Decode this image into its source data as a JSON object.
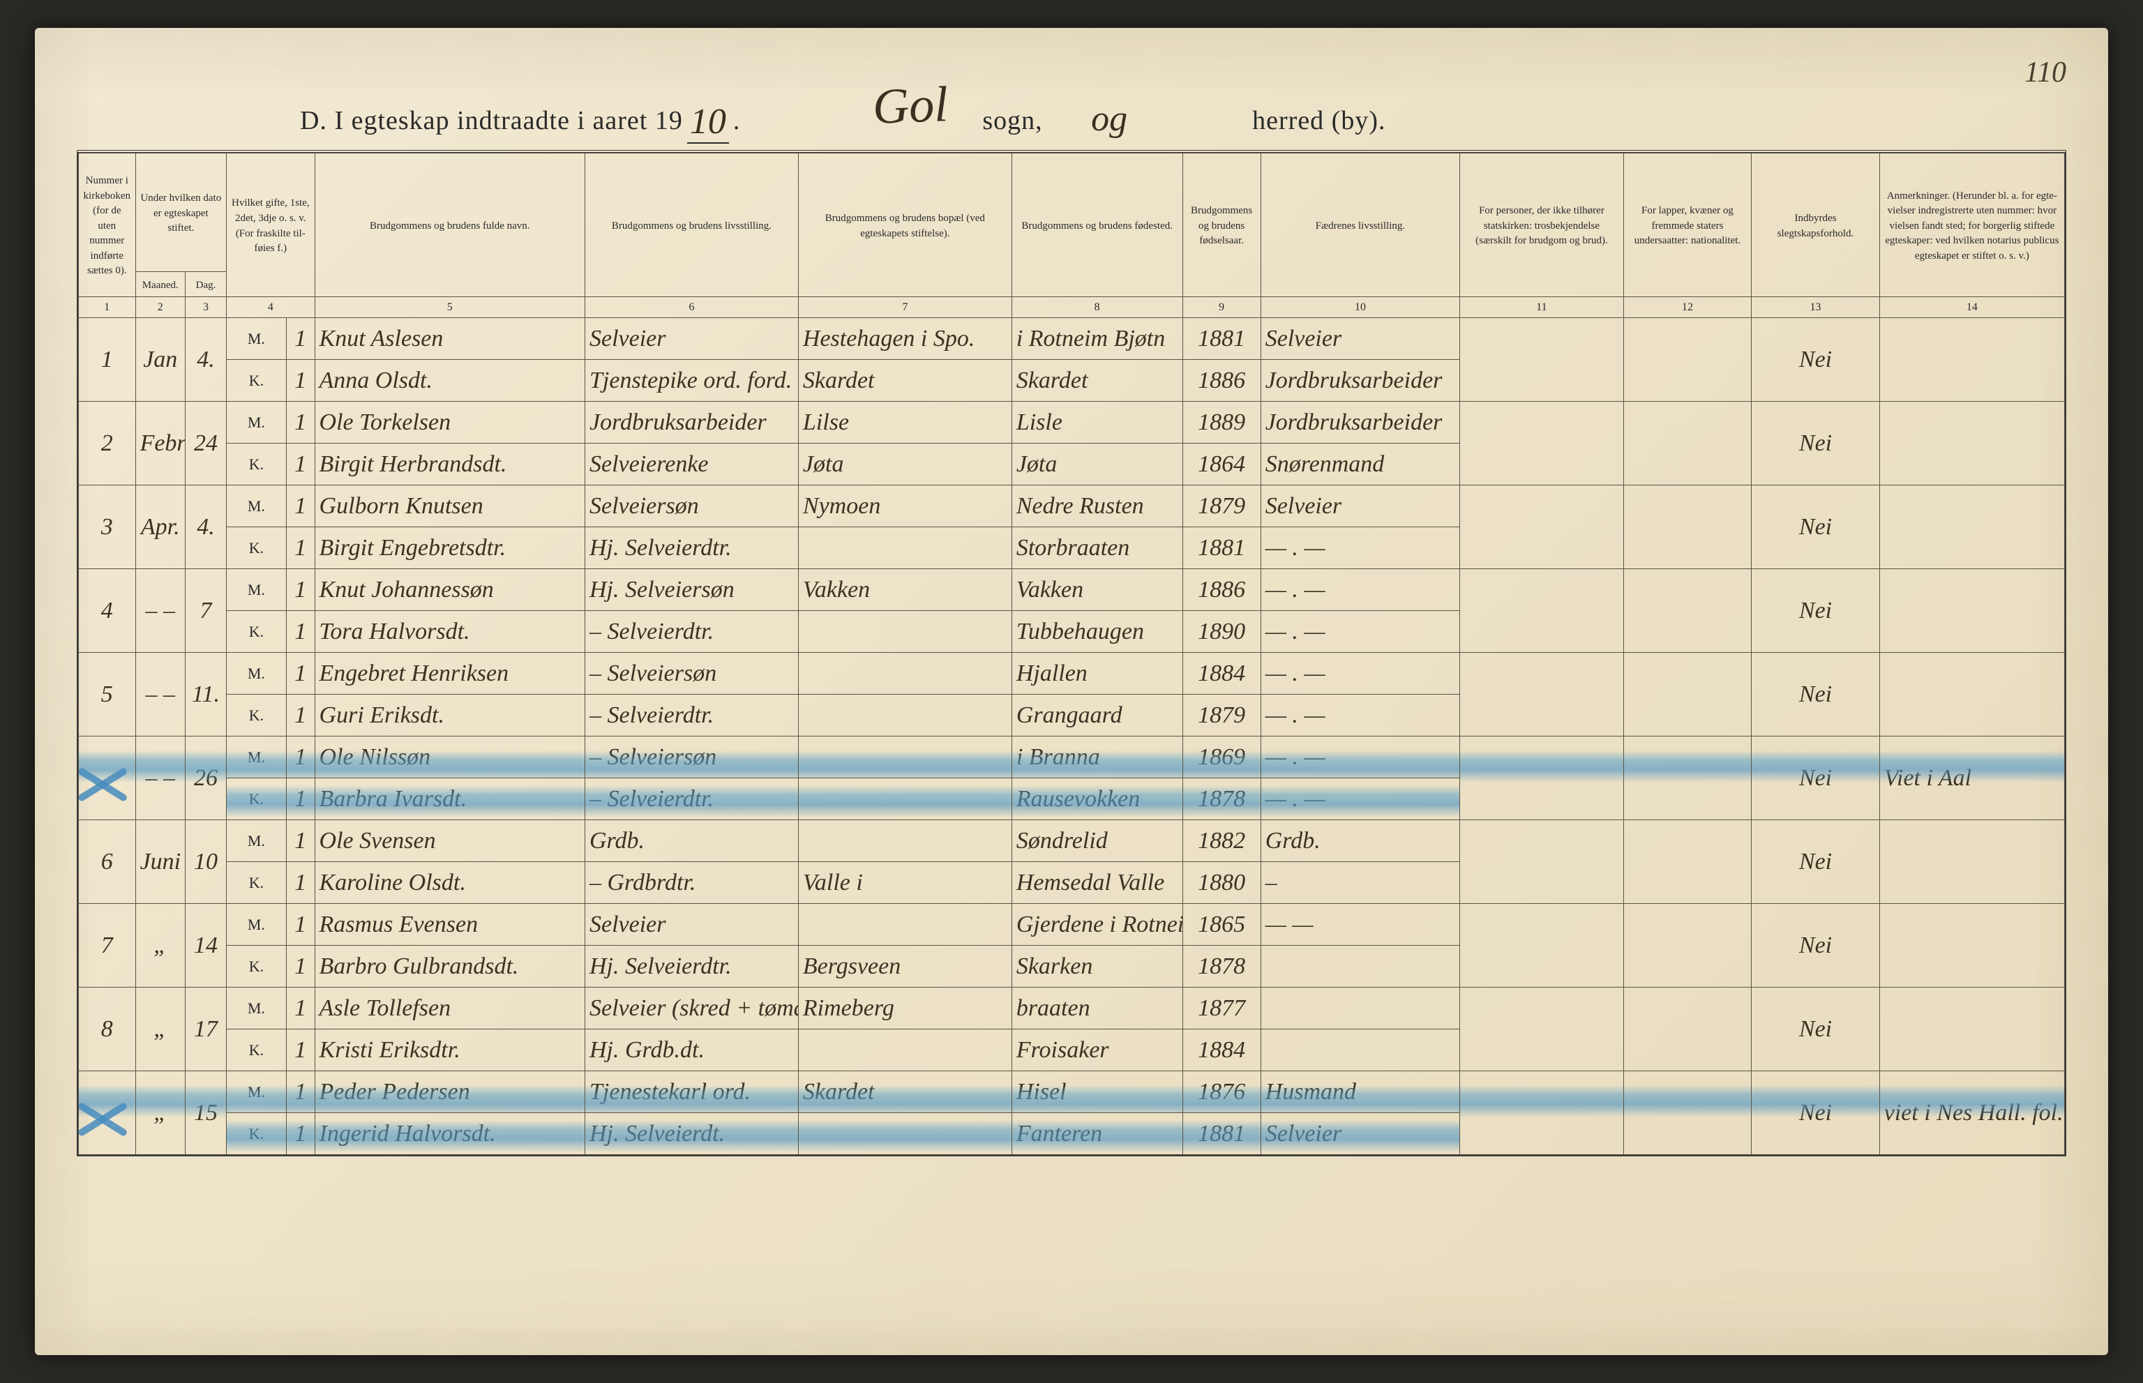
{
  "page_number_corner": "110",
  "title": {
    "prefix": "D.   I egteskap indtraadte i aaret 19",
    "year_hand": "10",
    "suffix1": ".",
    "sogn_hand": "Gol",
    "sogn_label": "sogn,",
    "herred_hand": "og",
    "herred_label": "herred (by)."
  },
  "headers": {
    "c1": "Nummer i kirke­boken (for de uten nummer indførte sættes 0).",
    "c23": "Under hvilken dato er egte­skapet stiftet.",
    "c2": "Maaned.",
    "c3": "Dag.",
    "c4": "Hvilket gifte, 1ste, 2det, 3dje o. s. v. (For fra­skilte til­føies f.)",
    "c5": "Brudgommens og brudens fulde navn.",
    "c6": "Brudgommens og brudens livsstilling.",
    "c7": "Brudgommens og brudens bopæl (ved egteskapets stiftelse).",
    "c8": "Brudgommens og brudens fødested.",
    "c9": "Brudgom­mens og brudens fødsels­aar.",
    "c10": "Fædrenes livsstilling.",
    "c11": "For personer, der ikke tilhører statskirken: trosbekjendelse (særskilt for brudgom og brud).",
    "c12": "For lapper, kvæner og fremmede staters undersaatter: nationalitet.",
    "c13": "Indbyrdes slegtskapsforhold.",
    "c14": "Anmerkninger. (Herunder bl. a. for egte­vielser indregistrerte uten nummer: hvor vielsen fandt sted; for borgerlig stiftede egteskaper: ved hvilken notarius publicus egteskapet er stiftet o. s. v.)"
  },
  "colnums": [
    "1",
    "2",
    "3",
    "4",
    "5",
    "6",
    "7",
    "8",
    "9",
    "10",
    "11",
    "12",
    "13",
    "14"
  ],
  "rows": [
    {
      "n": "1",
      "mnd": "Jan",
      "dag": "4.",
      "m": {
        "g": "M 1",
        "navn": "Knut Aslesen",
        "liv": "Selveier",
        "bopel": "Hestehagen i Spo.",
        "fsted": "i Rotneim Bjøtn",
        "aar": "1881",
        "far": "Selveier"
      },
      "k": {
        "g": "K 1",
        "navn": "Anna Olsdt.",
        "liv": "Tjenstepike ord. ford.",
        "bopel": "Skardet",
        "fsted": "Skardet",
        "aar": "1886",
        "far": "Jordbruksarbeider"
      },
      "c13": "Nei"
    },
    {
      "n": "2",
      "mnd": "Febr",
      "dag": "24",
      "m": {
        "g": "M 1",
        "navn": "Ole Torkelsen",
        "liv": "Jordbruksarbeider",
        "bopel": "Lilse",
        "fsted": "Lisle",
        "aar": "1889",
        "far": "Jordbruksarbeider"
      },
      "k": {
        "g": "K 1",
        "navn": "Birgit Herbrandsdt.",
        "liv": "Selveierenke",
        "bopel": "Jøta",
        "fsted": "Jøta",
        "aar": "1864",
        "far": "Snørenmand"
      },
      "c13": "Nei"
    },
    {
      "n": "3",
      "mnd": "Apr.",
      "dag": "4.",
      "m": {
        "g": "M 1",
        "navn": "Gulborn Knutsen",
        "liv": "Selveiersøn",
        "bopel": "Nymoen",
        "fsted": "Nedre Rusten",
        "aar": "1879",
        "far": "Selveier"
      },
      "k": {
        "g": "K 1",
        "navn": "Birgit Engebretsdtr.",
        "liv": "Hj. Selveierdtr.",
        "bopel": "",
        "fsted": "Storbraaten",
        "aar": "1881",
        "far": "—  .  —"
      },
      "c13": "Nei"
    },
    {
      "n": "4",
      "mnd": "‒ ‒",
      "dag": "7",
      "m": {
        "g": "M 1",
        "navn": "Knut Johannessøn",
        "liv": "Hj. Selveiersøn",
        "bopel": "Vakken",
        "fsted": "Vakken",
        "aar": "1886",
        "far": "—  .  —"
      },
      "k": {
        "g": "K 1",
        "navn": "Tora Halvorsdt.",
        "liv": "‒ Selveierdtr.",
        "bopel": "",
        "fsted": "Tubbehaugen",
        "aar": "1890",
        "far": "—  .  —"
      },
      "c13": "Nei"
    },
    {
      "n": "5",
      "mnd": "‒ ‒",
      "dag": "11.",
      "m": {
        "g": "M 1",
        "navn": "Engebret Henriksen",
        "liv": "‒ Selveiersøn",
        "bopel": "",
        "fsted": "Hjallen",
        "aar": "1884",
        "far": "—  .  —"
      },
      "k": {
        "g": "K 1",
        "navn": "Guri Eriksdt.",
        "liv": "‒ Selveierdtr.",
        "bopel": "",
        "fsted": "Grangaard",
        "aar": "1879",
        "far": "—  .  —"
      },
      "c13": "Nei"
    },
    {
      "n": "",
      "mnd": "‒ ‒",
      "dag": "26",
      "struck": true,
      "m": {
        "g": "M 1",
        "navn": "Ole Nilssøn",
        "liv": "‒ Selveiersøn",
        "bopel": "",
        "fsted": "i Branna",
        "aar": "1869",
        "far": "—  .  —"
      },
      "k": {
        "g": "K 1",
        "navn": "Barbra Ivarsdt.",
        "liv": "‒ Selveierdtr.",
        "bopel": "",
        "fsted": "Rausevokken",
        "aar": "1878",
        "far": "—  .  —"
      },
      "c13": "Nei",
      "c14": "Viet i Aal"
    },
    {
      "n": "6",
      "mnd": "Juni",
      "dag": "10",
      "m": {
        "g": "M 1",
        "navn": "Ole Svensen",
        "liv": "Grdb.",
        "bopel": "",
        "fsted": "Søndrelid",
        "aar": "1882",
        "far": "Grdb."
      },
      "k": {
        "g": "K 1",
        "navn": "Karoline Olsdt.",
        "liv": "‒ Grdbrdtr.",
        "bopel": "Valle i",
        "fsted": "Hemsedal Valle",
        "aar": "1880",
        "far": "‒"
      },
      "c13": "Nei"
    },
    {
      "n": "7",
      "mnd": "„",
      "dag": "14",
      "m": {
        "g": "M 1",
        "navn": "Rasmus Evensen",
        "liv": "Selveier",
        "bopel": "",
        "fsted": "Gjerdene i Rotneim",
        "aar": "1865",
        "far": "—   —"
      },
      "k": {
        "g": "K 1",
        "navn": "Barbro Gulbrandsdt.",
        "liv": "Hj. Selveierdtr.",
        "bopel": "Bergsveen",
        "fsted": "Skarken",
        "aar": "1878",
        "far": ""
      },
      "c13": "Nei"
    },
    {
      "n": "8",
      "mnd": "„",
      "dag": "17",
      "m": {
        "g": "M 1",
        "navn": "Asle Tollefsen",
        "liv": "Selveier (skred + tømand.)",
        "bopel": "Rimeberg",
        "fsted": "braaten",
        "aar": "1877",
        "far": ""
      },
      "k": {
        "g": "K 1",
        "navn": "Kristi Eriksdtr.",
        "liv": "Hj. Grdb.dt.",
        "bopel": "",
        "fsted": "Froisaker",
        "aar": "1884",
        "far": ""
      },
      "c13": "Nei"
    },
    {
      "n": "",
      "mnd": "„",
      "dag": "15",
      "struck": true,
      "m": {
        "g": "M 1",
        "navn": "Peder Pedersen",
        "liv": "Tjenestekarl ord.",
        "bopel": "Skardet",
        "fsted": "Hisel",
        "aar": "1876",
        "far": "Husmand"
      },
      "k": {
        "g": "K 1",
        "navn": "Ingerid Halvorsdt.",
        "liv": "Hj. Selveierdt.",
        "bopel": "",
        "fsted": "Fanteren",
        "aar": "1881",
        "far": "Selveier"
      },
      "c13": "Nei",
      "c14": "viet i Nes   Hall. fol."
    }
  ],
  "colors": {
    "paper": "#ede3c8",
    "ink": "#2a2a2a",
    "hand": "#3b3222",
    "rule": "#5a5344",
    "highlight": "#5aa0c8"
  }
}
